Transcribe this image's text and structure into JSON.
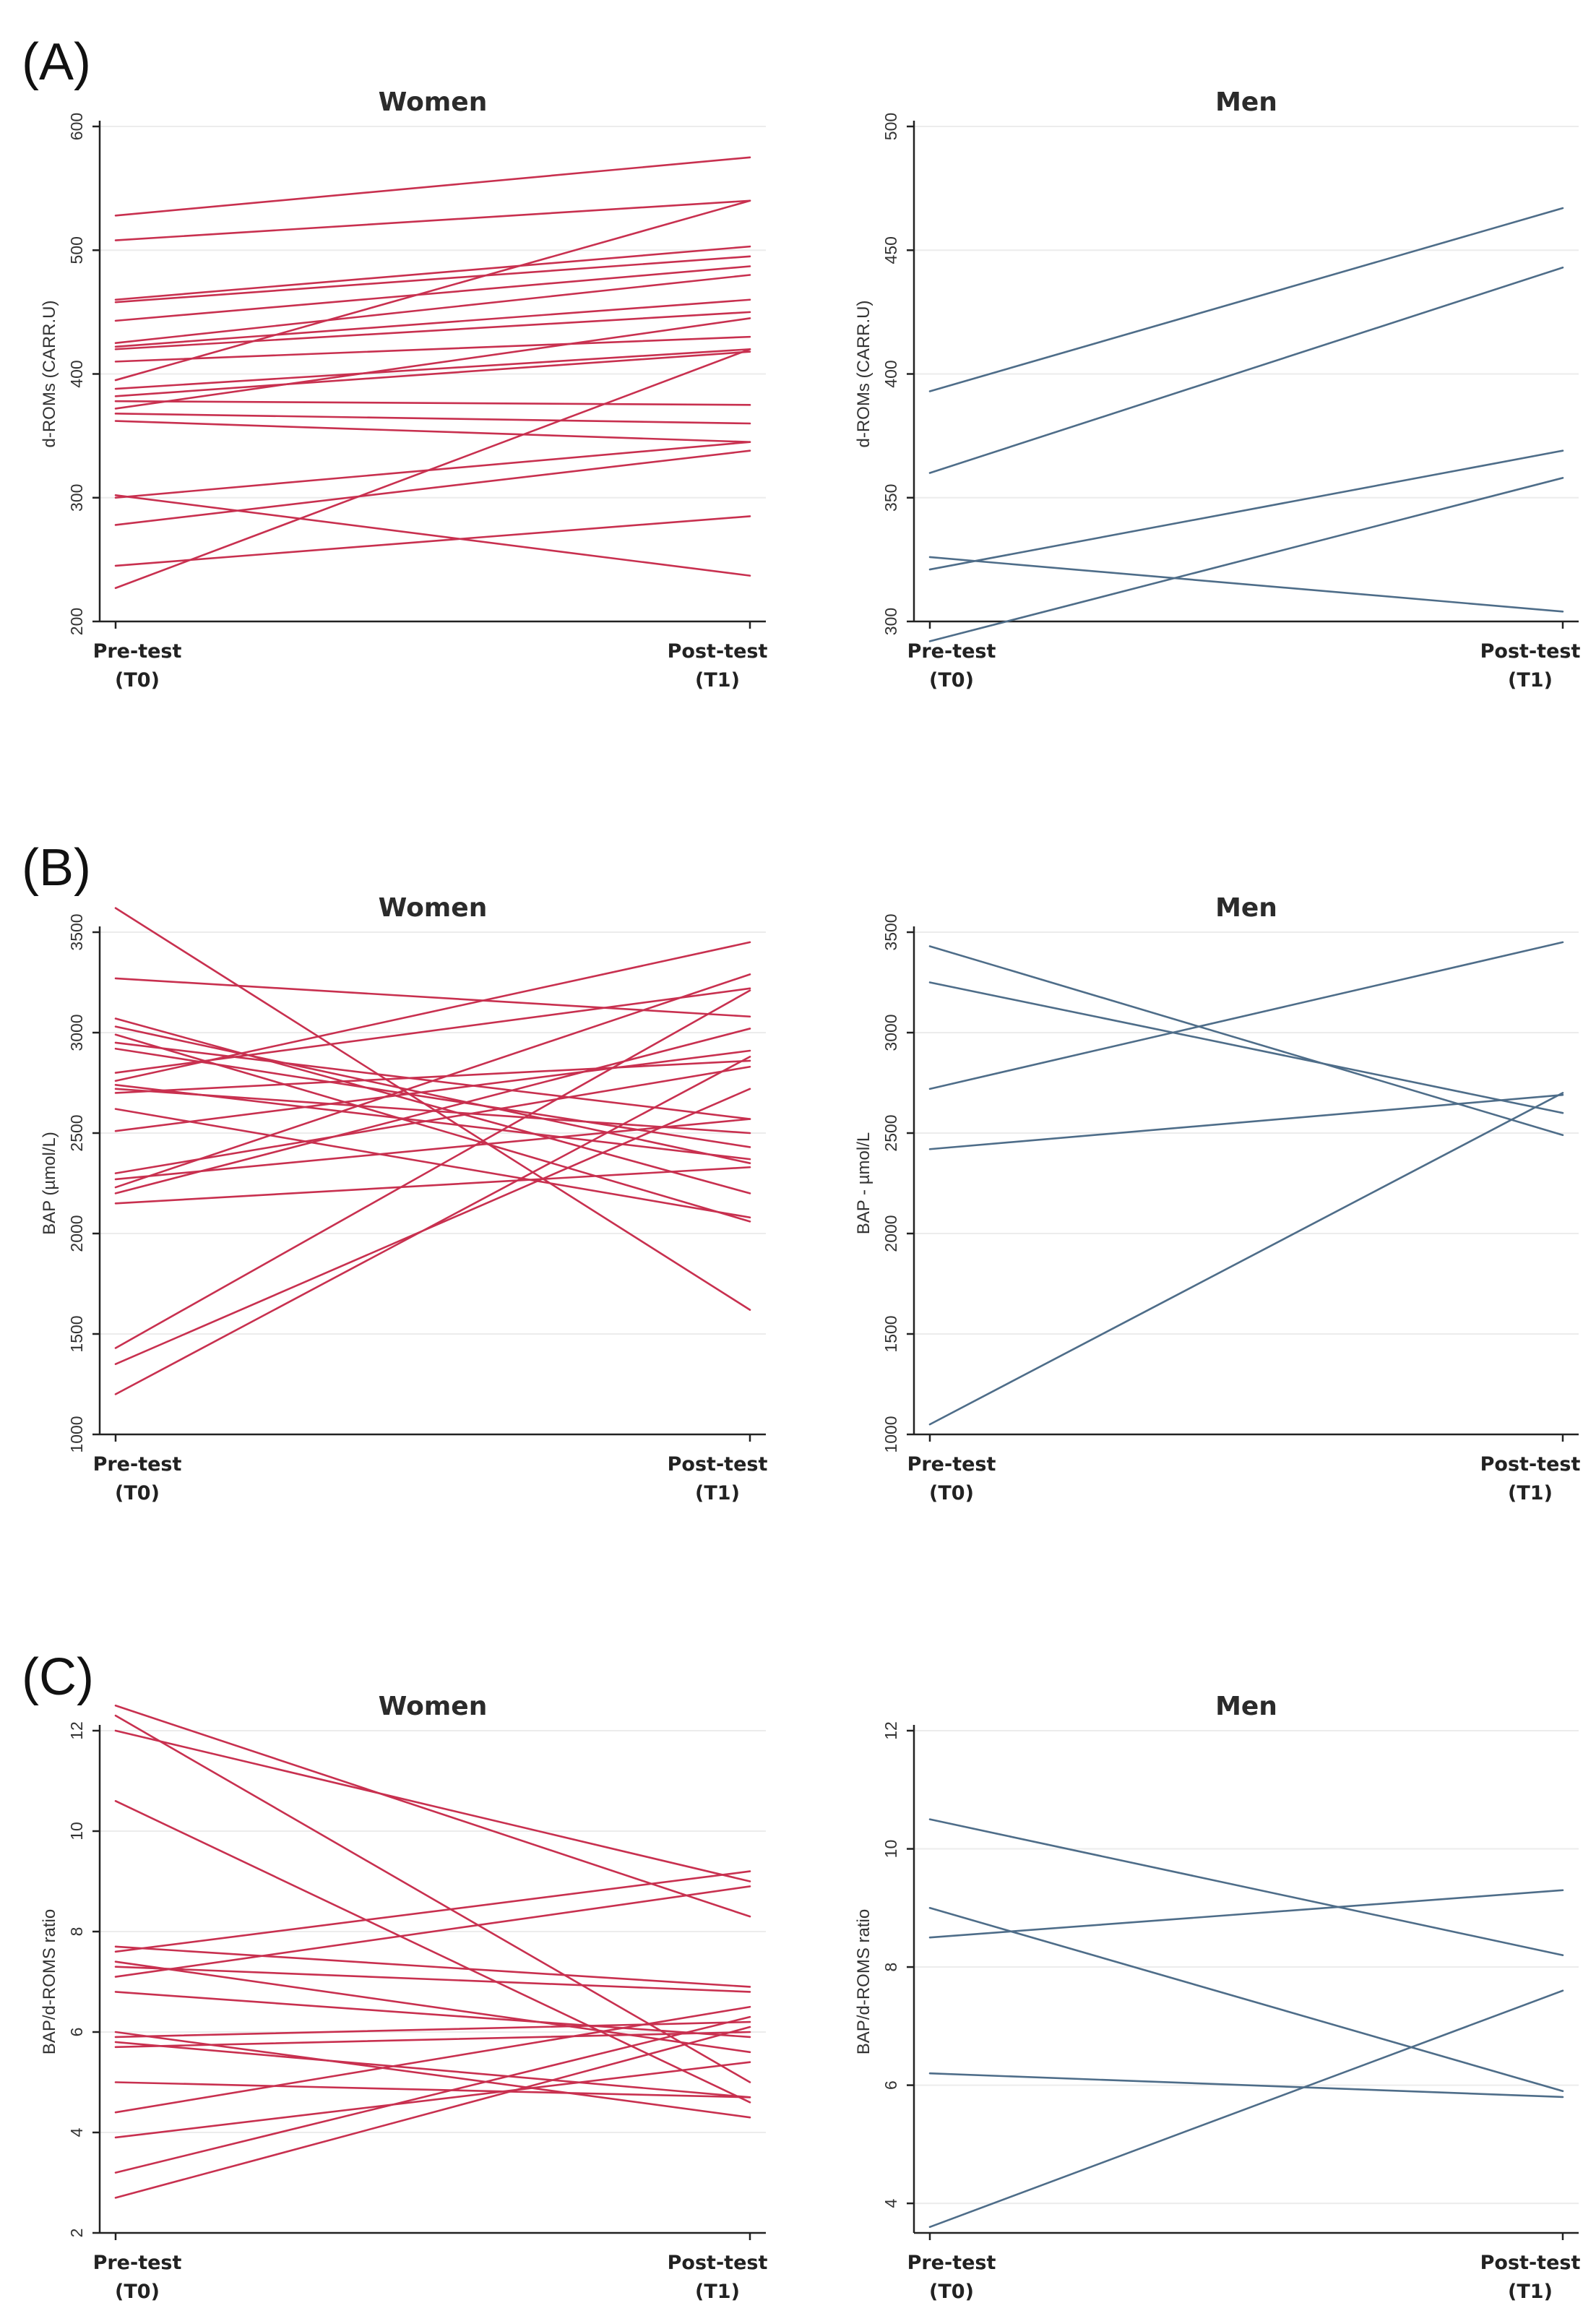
{
  "panel_labels": [
    "(A)",
    "(B)",
    "(C)"
  ],
  "colors": {
    "women": "#c8304f",
    "men": "#4e6d89"
  },
  "chart_data": [
    {
      "id": "A-women",
      "type": "line",
      "panel": "(A)",
      "title": "Women",
      "ylabel": "d-ROMs (CARR.U)",
      "ylim": [
        200,
        600
      ],
      "yticks": [
        200,
        300,
        400,
        500,
        600
      ],
      "categories": [
        [
          "Pre-test",
          "(T0)"
        ],
        [
          "Post-test",
          "(T1)"
        ]
      ],
      "color": "women",
      "series": [
        [
          528,
          575
        ],
        [
          508,
          540
        ],
        [
          460,
          503
        ],
        [
          458,
          495
        ],
        [
          443,
          487
        ],
        [
          425,
          480
        ],
        [
          422,
          460
        ],
        [
          420,
          450
        ],
        [
          410,
          430
        ],
        [
          395,
          540
        ],
        [
          388,
          420
        ],
        [
          382,
          418
        ],
        [
          378,
          375
        ],
        [
          372,
          445
        ],
        [
          368,
          360
        ],
        [
          362,
          345
        ],
        [
          300,
          345
        ],
        [
          302,
          237
        ],
        [
          278,
          338
        ],
        [
          245,
          285
        ],
        [
          227,
          420
        ]
      ]
    },
    {
      "id": "A-men",
      "type": "line",
      "panel": "(A)",
      "title": "Men",
      "ylabel": "d-ROMs (CARR.U)",
      "ylim": [
        300,
        500
      ],
      "yticks": [
        300,
        350,
        400,
        450,
        500
      ],
      "categories": [
        [
          "Pre-test",
          "(T0)"
        ],
        [
          "Post-test",
          "(T1)"
        ]
      ],
      "color": "men",
      "series": [
        [
          393,
          467
        ],
        [
          360,
          443
        ],
        [
          326,
          304
        ],
        [
          321,
          369
        ],
        [
          292,
          358
        ]
      ]
    },
    {
      "id": "B-women",
      "type": "line",
      "panel": "(B)",
      "title": "Women",
      "ylabel": "BAP (µmol/L)",
      "ylim": [
        1000,
        3500
      ],
      "yticks": [
        1000,
        1500,
        2000,
        2500,
        3000,
        3500
      ],
      "categories": [
        [
          "Pre-test",
          "(T0)"
        ],
        [
          "Post-test",
          "(T1)"
        ]
      ],
      "color": "women",
      "series": [
        [
          3620,
          1620
        ],
        [
          3270,
          3080
        ],
        [
          3070,
          2200
        ],
        [
          3030,
          2350
        ],
        [
          2990,
          2060
        ],
        [
          2950,
          2570
        ],
        [
          2920,
          2430
        ],
        [
          2800,
          3220
        ],
        [
          2760,
          3450
        ],
        [
          2740,
          2370
        ],
        [
          2720,
          2500
        ],
        [
          2700,
          2860
        ],
        [
          2620,
          2080
        ],
        [
          2510,
          2910
        ],
        [
          2300,
          2830
        ],
        [
          2270,
          2570
        ],
        [
          2230,
          3290
        ],
        [
          2200,
          3020
        ],
        [
          2150,
          2330
        ],
        [
          1430,
          3210
        ],
        [
          1350,
          2720
        ],
        [
          1200,
          2880
        ]
      ]
    },
    {
      "id": "B-men",
      "type": "line",
      "panel": "(B)",
      "title": "Men",
      "ylabel": "BAP - µmol/L",
      "ylim": [
        1000,
        3500
      ],
      "yticks": [
        1000,
        1500,
        2000,
        2500,
        3000,
        3500
      ],
      "categories": [
        [
          "Pre-test",
          "(T0)"
        ],
        [
          "Post-test",
          "(T1)"
        ]
      ],
      "color": "men",
      "series": [
        [
          3430,
          2490
        ],
        [
          3250,
          2600
        ],
        [
          2720,
          3450
        ],
        [
          2420,
          2690
        ],
        [
          1050,
          2700
        ]
      ]
    },
    {
      "id": "C-women",
      "type": "line",
      "panel": "(C)",
      "title": "Women",
      "ylabel": "BAP/d-ROMS ratio",
      "ylim": [
        2,
        12
      ],
      "yticks": [
        2,
        4,
        6,
        8,
        10,
        12
      ],
      "categories": [
        [
          "Pre-test",
          "(T0)"
        ],
        [
          "Post-test",
          "(T1)"
        ]
      ],
      "color": "women",
      "series": [
        [
          12.5,
          8.3
        ],
        [
          12.3,
          5.0
        ],
        [
          12.0,
          9.0
        ],
        [
          10.6,
          4.6
        ],
        [
          7.7,
          6.9
        ],
        [
          7.6,
          9.2
        ],
        [
          7.4,
          5.6
        ],
        [
          7.3,
          6.8
        ],
        [
          7.1,
          8.9
        ],
        [
          6.8,
          5.9
        ],
        [
          6.0,
          4.3
        ],
        [
          5.9,
          6.2
        ],
        [
          5.8,
          4.7
        ],
        [
          5.7,
          6.0
        ],
        [
          5.0,
          4.7
        ],
        [
          4.4,
          6.5
        ],
        [
          3.9,
          5.4
        ],
        [
          3.2,
          6.3
        ],
        [
          2.7,
          6.1
        ]
      ]
    },
    {
      "id": "C-men",
      "type": "line",
      "panel": "(C)",
      "title": "Men",
      "ylabel": "BAP/d-ROMS ratio",
      "ylim": [
        3.5,
        12
      ],
      "yticks": [
        4,
        6,
        8,
        10,
        12
      ],
      "categories": [
        [
          "Pre-test",
          "(T0)"
        ],
        [
          "Post-test",
          "(T1)"
        ]
      ],
      "color": "men",
      "series": [
        [
          10.5,
          8.2
        ],
        [
          9.0,
          5.9
        ],
        [
          8.5,
          9.3
        ],
        [
          6.2,
          5.8
        ],
        [
          3.6,
          7.6
        ]
      ]
    }
  ]
}
